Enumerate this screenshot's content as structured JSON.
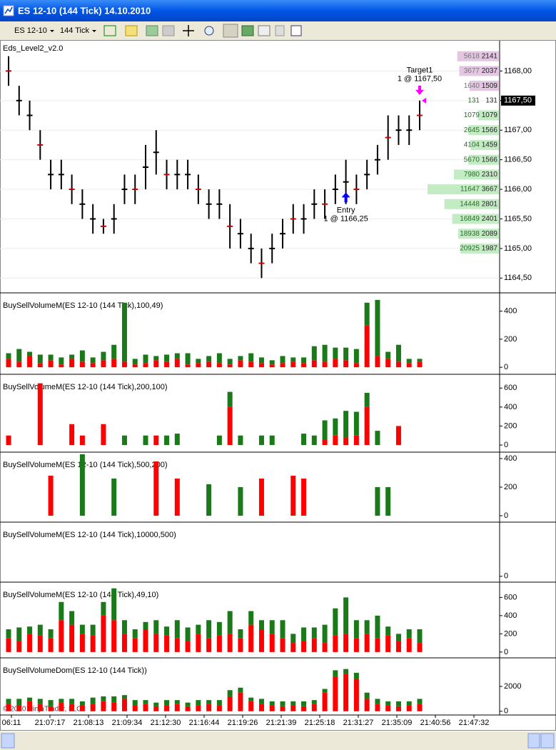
{
  "window": {
    "title": "ES 12-10 (144 Tick)  14.10.2010"
  },
  "toolbar": {
    "instrument": "ES 12-10",
    "period": "144 Tick"
  },
  "chart_data": [
    {
      "type": "ohlc",
      "title": "Eds_Level2_v2.0",
      "color": "#000000",
      "grid": true,
      "ylim": [
        1164.25,
        1168.5
      ],
      "yticks": [
        {
          "value": 1164.5,
          "label": "1164,50"
        },
        {
          "value": 1165,
          "label": "1165,00"
        },
        {
          "value": 1165.5,
          "label": "1165,50"
        },
        {
          "value": 1166,
          "label": "1166,00"
        },
        {
          "value": 1166.5,
          "label": "1166,50"
        },
        {
          "value": 1167,
          "label": "1167,00"
        },
        {
          "value": 1167.5,
          "label": "1167,50"
        },
        {
          "value": 1168,
          "label": "1168,00"
        }
      ],
      "high": [
        1168.25,
        1167.75,
        1167.5,
        1167.0,
        1166.5,
        1166.5,
        1166.25,
        1166.0,
        1165.75,
        1165.5,
        1165.75,
        1166.25,
        1166.25,
        1166.75,
        1167.0,
        1166.5,
        1166.5,
        1166.5,
        1166.25,
        1166.0,
        1166.0,
        1165.75,
        1165.5,
        1165.25,
        1165.0,
        1165.25,
        1165.5,
        1165.75,
        1165.75,
        1166.0,
        1166.0,
        1166.25,
        1166.5,
        1166.25,
        1166.5,
        1166.75,
        1167.25,
        1167.25,
        1167.25,
        1167.5
      ],
      "low": [
        1167.75,
        1167.25,
        1167.0,
        1166.5,
        1166.0,
        1166.0,
        1165.75,
        1165.5,
        1165.25,
        1165.25,
        1165.25,
        1165.75,
        1165.75,
        1166.0,
        1166.25,
        1166.0,
        1166.0,
        1166.0,
        1165.75,
        1165.5,
        1165.5,
        1165.0,
        1165.0,
        1164.75,
        1164.5,
        1164.75,
        1165.0,
        1165.25,
        1165.25,
        1165.5,
        1165.5,
        1165.75,
        1165.75,
        1165.75,
        1166.0,
        1166.25,
        1166.5,
        1166.75,
        1166.75,
        1167.0
      ],
      "last_price": {
        "value": 1167.5,
        "label": "1167,50"
      },
      "annotations": [
        {
          "label": "Target1",
          "detail": "1 @ 1167,50",
          "index": 39,
          "value": 1167.5,
          "color": "#ff00ff",
          "direction": "down"
        },
        {
          "label": "Entry",
          "detail": "1 @ 1166,25",
          "index": 32,
          "value": 1166.25,
          "color": "#0000ff",
          "direction": "up"
        }
      ],
      "ladder": {
        "ask_color": "#e2c6e2",
        "bid_color": "#c4ecc4",
        "rows": [
          {
            "price": 1168.25,
            "left": 5618,
            "right": 2141,
            "side": "ask"
          },
          {
            "price": 1168.0,
            "left": 3677,
            "right": 2037,
            "side": "ask"
          },
          {
            "price": 1167.75,
            "left": 1640,
            "right": 1509,
            "side": "ask"
          },
          {
            "price": 1167.5,
            "left": 131,
            "right": 131,
            "side": "last"
          },
          {
            "price": 1167.25,
            "left": 1079,
            "right": 1079,
            "side": "bid"
          },
          {
            "price": 1167.0,
            "left": 2645,
            "right": 1566,
            "side": "bid"
          },
          {
            "price": 1166.75,
            "left": 4104,
            "right": 1459,
            "side": "bid"
          },
          {
            "price": 1166.5,
            "left": 5670,
            "right": 1566,
            "side": "bid"
          },
          {
            "price": 1166.25,
            "left": 7980,
            "right": 2310,
            "side": "bid"
          },
          {
            "price": 1166.0,
            "left": 11647,
            "right": 3667,
            "side": "bid"
          },
          {
            "price": 1165.75,
            "left": 14448,
            "right": 2801,
            "side": "bid"
          },
          {
            "price": 1165.5,
            "left": 16849,
            "right": 2401,
            "side": "bid"
          },
          {
            "price": 1165.25,
            "left": 18938,
            "right": 2089,
            "side": "bid"
          },
          {
            "price": 1165.0,
            "left": 20925,
            "right": 1987,
            "side": "bid"
          }
        ]
      }
    },
    {
      "type": "stacked_bar",
      "title": "BuySellVolumeM(ES 12-10 (144 Tick),100,49)",
      "ylim": [
        -50,
        530
      ],
      "yticks": [
        0,
        200,
        400
      ],
      "series": [
        {
          "color": "#ff0000",
          "values": [
            60,
            40,
            80,
            30,
            50,
            20,
            60,
            40,
            30,
            50,
            60,
            40,
            20,
            30,
            50,
            40,
            60,
            20,
            30,
            40,
            30,
            20,
            50,
            40,
            30,
            20,
            30,
            40,
            30,
            50,
            40,
            60,
            50,
            30,
            300,
            80,
            60,
            40,
            30,
            40
          ]
        },
        {
          "color": "#1a7a1a",
          "values": [
            40,
            90,
            30,
            60,
            40,
            50,
            30,
            80,
            40,
            60,
            100,
            420,
            40,
            60,
            30,
            50,
            40,
            80,
            30,
            40,
            70,
            40,
            30,
            60,
            40,
            30,
            50,
            30,
            40,
            100,
            120,
            80,
            90,
            100,
            160,
            400,
            50,
            120,
            30,
            20
          ]
        }
      ]
    },
    {
      "type": "stacked_bar",
      "title": "BuySellVolumeM(ES 12-10 (144 Tick),200,100)",
      "ylim": [
        -75,
        745
      ],
      "yticks": [
        0,
        200,
        400,
        600
      ],
      "series": [
        {
          "color": "#ff0000",
          "values": [
            100,
            null,
            null,
            650,
            null,
            null,
            220,
            100,
            null,
            220,
            null,
            null,
            null,
            null,
            100,
            null,
            null,
            null,
            null,
            null,
            null,
            400,
            null,
            null,
            null,
            null,
            null,
            null,
            null,
            null,
            60,
            100,
            80,
            100,
            400,
            null,
            null,
            200,
            null,
            null
          ]
        },
        {
          "color": "#1a7a1a",
          "values": [
            null,
            null,
            null,
            null,
            null,
            null,
            null,
            null,
            null,
            null,
            null,
            100,
            null,
            100,
            null,
            100,
            120,
            null,
            null,
            null,
            100,
            160,
            100,
            null,
            100,
            100,
            null,
            null,
            120,
            100,
            200,
            180,
            280,
            250,
            150,
            150,
            null,
            null,
            null,
            null
          ]
        }
      ]
    },
    {
      "type": "stacked_bar",
      "title": "BuySellVolumeM(ES 12-10 (144 Tick),500,200)",
      "ylim": [
        -45,
        445
      ],
      "yticks": [
        0,
        200,
        400
      ],
      "series": [
        {
          "color": "#ff0000",
          "values": [
            null,
            null,
            null,
            null,
            280,
            null,
            null,
            null,
            null,
            null,
            null,
            null,
            null,
            null,
            380,
            null,
            260,
            null,
            null,
            null,
            null,
            null,
            null,
            null,
            260,
            null,
            null,
            280,
            260,
            null,
            null,
            null,
            null,
            null,
            null,
            null,
            null,
            null,
            null,
            null
          ]
        },
        {
          "color": "#1a7a1a",
          "values": [
            null,
            null,
            null,
            null,
            null,
            null,
            null,
            430,
            null,
            null,
            260,
            null,
            null,
            null,
            null,
            null,
            null,
            null,
            null,
            220,
            null,
            null,
            200,
            null,
            null,
            null,
            null,
            null,
            null,
            null,
            null,
            null,
            null,
            null,
            null,
            200,
            200,
            null,
            null,
            null
          ]
        }
      ]
    },
    {
      "type": "stacked_bar",
      "title": "BuySellVolumeM(ES 12-10 (144 Tick),10000,500)",
      "ylim": [
        -40,
        370
      ],
      "yticks": [
        0
      ],
      "series": []
    },
    {
      "type": "stacked_bar",
      "title": "BuySellVolumeM(ES 12-10 (144 Tick),49,10)",
      "ylim": [
        -64,
        768
      ],
      "yticks": [
        0,
        200,
        400,
        600
      ],
      "series": [
        {
          "color": "#ff0000",
          "values": [
            150,
            120,
            200,
            180,
            150,
            350,
            300,
            200,
            180,
            400,
            350,
            200,
            150,
            250,
            200,
            180,
            150,
            120,
            200,
            150,
            180,
            200,
            150,
            300,
            250,
            200,
            150,
            100,
            120,
            150,
            100,
            180,
            200,
            150,
            200,
            150,
            180,
            120,
            150,
            100
          ]
        },
        {
          "color": "#1a7a1a",
          "values": [
            100,
            150,
            80,
            120,
            100,
            200,
            150,
            100,
            120,
            150,
            350,
            150,
            100,
            80,
            150,
            100,
            200,
            150,
            100,
            200,
            150,
            250,
            100,
            150,
            100,
            150,
            200,
            100,
            150,
            120,
            200,
            300,
            400,
            200,
            150,
            250,
            100,
            80,
            100,
            150
          ]
        }
      ]
    },
    {
      "type": "stacked_bar",
      "title": "BuySellVolumeDom(ES 12-10 (144 Tick))",
      "ylim": [
        -300,
        4300
      ],
      "yticks": [
        0,
        2000
      ],
      "series": [
        {
          "color": "#ff0000",
          "values": [
            600,
            500,
            800,
            600,
            400,
            700,
            600,
            500,
            600,
            800,
            700,
            1000,
            500,
            600,
            400,
            500,
            600,
            400,
            500,
            600,
            500,
            1200,
            1500,
            800,
            600,
            500,
            400,
            500,
            400,
            600,
            1500,
            2800,
            3000,
            2600,
            1000,
            600,
            500,
            400,
            500,
            600
          ]
        },
        {
          "color": "#1a7a1a",
          "values": [
            400,
            500,
            300,
            400,
            500,
            300,
            400,
            300,
            500,
            400,
            500,
            300,
            400,
            300,
            300,
            400,
            300,
            300,
            400,
            300,
            400,
            500,
            400,
            300,
            400,
            300,
            400,
            300,
            400,
            300,
            300,
            500,
            400,
            500,
            500,
            400,
            300,
            400,
            300,
            400
          ]
        }
      ]
    }
  ],
  "time_axis": {
    "labels": [
      "06:11",
      "21:07:17",
      "21:08:13",
      "21:09:34",
      "21:12:30",
      "21:16:44",
      "21:19:26",
      "21:21:39",
      "21:25:18",
      "21:31:27",
      "21:35:09",
      "21:40:56",
      "21:47:32"
    ]
  },
  "copyright": "© 2010 NinjaTrader, LLC"
}
